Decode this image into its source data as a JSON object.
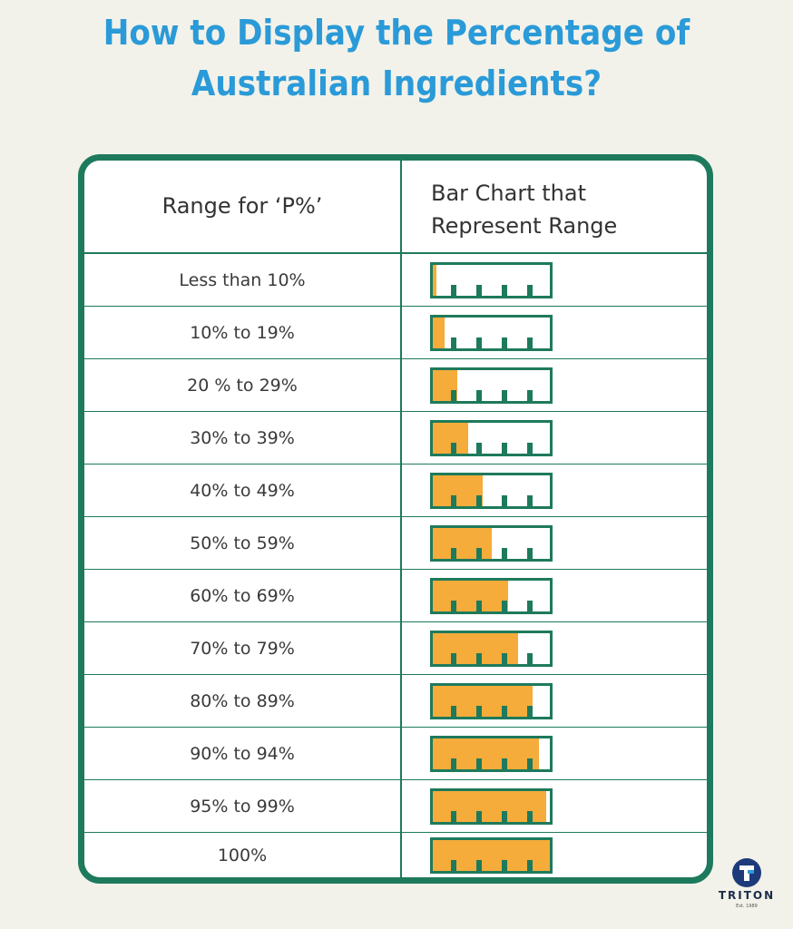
{
  "title": {
    "line1": "How to Display the Percentage of",
    "line2": "Australian Ingredients?"
  },
  "table": {
    "header_range": "Range for ‘P%’",
    "header_bar_line1": "Bar Chart that",
    "header_bar_line2": "Represent Range",
    "rows": [
      {
        "range": "Less than 10%",
        "fill": 0.03
      },
      {
        "range": "10% to 19%",
        "fill": 0.1
      },
      {
        "range": "20 % to 29%",
        "fill": 0.21
      },
      {
        "range": "30% to 39%",
        "fill": 0.3
      },
      {
        "range": "40% to 49%",
        "fill": 0.43
      },
      {
        "range": "50% to 59%",
        "fill": 0.5
      },
      {
        "range": "60% to 69%",
        "fill": 0.64
      },
      {
        "range": "70% to 79%",
        "fill": 0.73
      },
      {
        "range": "80% to 89%",
        "fill": 0.85
      },
      {
        "range": "90% to 94%",
        "fill": 0.91
      },
      {
        "range": "95% to 99%",
        "fill": 0.97
      },
      {
        "range": "100%",
        "fill": 1.0
      }
    ]
  },
  "colors": {
    "title": "#2a9ad8",
    "border": "#1e7a5c",
    "fill": "#f5ac3a"
  },
  "logo": {
    "name": "TRITON",
    "sub": "Est. 1989"
  }
}
